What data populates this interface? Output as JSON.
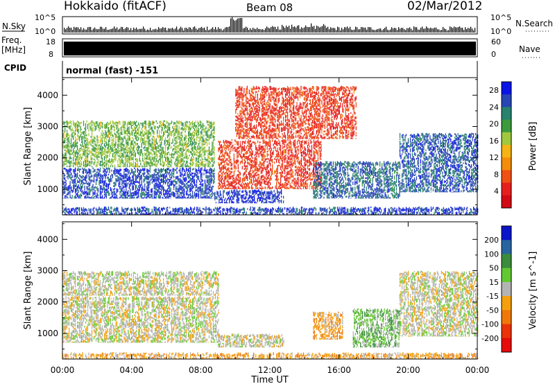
{
  "header": {
    "station": "Hokkaido (fitACF)",
    "beam": "Beam 08",
    "date": "02/Mar/2012"
  },
  "top_panels": {
    "nsky_label": "N.Sky",
    "nsky_ticks": [
      "10^5",
      "10^0"
    ],
    "nsearch_label": "N.Search",
    "freq_label": "Freq.",
    "freq_unit": "[MHz]",
    "freq_ticks": [
      "18",
      "8"
    ],
    "nave_label": "Nave",
    "nave_ticks": [
      "60",
      "0"
    ],
    "cpid_label": "CPID",
    "cpid_text": "normal (fast) -151"
  },
  "chart_data": [
    {
      "type": "heatmap",
      "title": "",
      "xlabel": "Time UT",
      "ylabel": "Slant Range [km]",
      "x_ticks": [
        "00:00",
        "04:00",
        "08:00",
        "12:00",
        "16:00",
        "20:00",
        "00:00"
      ],
      "xlim_hours": [
        0,
        24
      ],
      "y_ticks": [
        1000,
        2000,
        3000,
        4000
      ],
      "ylim": [
        180,
        4560
      ],
      "colorbar": {
        "label": "Power [dB]",
        "ticks": [
          4,
          8,
          12,
          16,
          20,
          24,
          28
        ],
        "range": [
          0,
          30
        ],
        "colors": [
          "#0a14e6",
          "#2846b4",
          "#28826e",
          "#3c9a3c",
          "#a0c83c",
          "#f5b414",
          "#f58c0a",
          "#f05014",
          "#e61e1e",
          "#d20a14"
        ]
      },
      "regions": [
        {
          "t0": 0.0,
          "t1": 8.8,
          "r0": 700,
          "r1": 1700,
          "value": 26
        },
        {
          "t0": 0.0,
          "t1": 8.8,
          "r0": 1700,
          "r1": 3200,
          "value": 18
        },
        {
          "t0": 8.8,
          "t1": 12.8,
          "r0": 550,
          "r1": 1000,
          "value": 27
        },
        {
          "t0": 9.0,
          "t1": 15.0,
          "r0": 1000,
          "r1": 2600,
          "value": 6
        },
        {
          "t0": 10.0,
          "t1": 17.0,
          "r0": 2600,
          "r1": 4300,
          "value": 6
        },
        {
          "t0": 14.5,
          "t1": 19.5,
          "r0": 700,
          "r1": 1900,
          "value": 24
        },
        {
          "t0": 19.5,
          "t1": 24.0,
          "r0": 900,
          "r1": 2800,
          "value": 25
        },
        {
          "t0": 0.0,
          "t1": 24.0,
          "r0": 180,
          "r1": 450,
          "value": 26
        }
      ]
    },
    {
      "type": "heatmap",
      "title": "",
      "xlabel": "Time UT",
      "ylabel": "Slant Range [km]",
      "x_ticks": [
        "00:00",
        "04:00",
        "08:00",
        "12:00",
        "16:00",
        "20:00",
        "00:00"
      ],
      "xlim_hours": [
        0,
        24
      ],
      "y_ticks": [
        1000,
        2000,
        3000,
        4000
      ],
      "ylim": [
        180,
        4560
      ],
      "colorbar": {
        "label": "Velocity [m s^-1]",
        "ticks": [
          200,
          100,
          50,
          15,
          -15,
          -50,
          -100,
          -200
        ],
        "range": [
          -250,
          250
        ],
        "colors": [
          "#0a14c8",
          "#2864a0",
          "#3c8c3c",
          "#64c832",
          "#b4b4b4",
          "#f5a00a",
          "#f0780a",
          "#eb320a",
          "#e60a0a"
        ]
      },
      "regions": [
        {
          "t0": 0.0,
          "t1": 9.0,
          "r0": 700,
          "r1": 2200,
          "value": 0
        },
        {
          "t0": 0.0,
          "t1": 9.0,
          "r0": 2200,
          "r1": 3000,
          "value": 0
        },
        {
          "t0": 9.0,
          "t1": 12.8,
          "r0": 550,
          "r1": 1000,
          "value": 0
        },
        {
          "t0": 14.5,
          "t1": 16.2,
          "r0": 800,
          "r1": 1700,
          "value": -60
        },
        {
          "t0": 16.8,
          "t1": 19.5,
          "r0": 550,
          "r1": 1800,
          "value": 60
        },
        {
          "t0": 19.5,
          "t1": 24.0,
          "r0": 900,
          "r1": 3000,
          "value": 0
        },
        {
          "t0": 0.0,
          "t1": 24.0,
          "r0": 180,
          "r1": 400,
          "value": -60
        }
      ]
    }
  ]
}
